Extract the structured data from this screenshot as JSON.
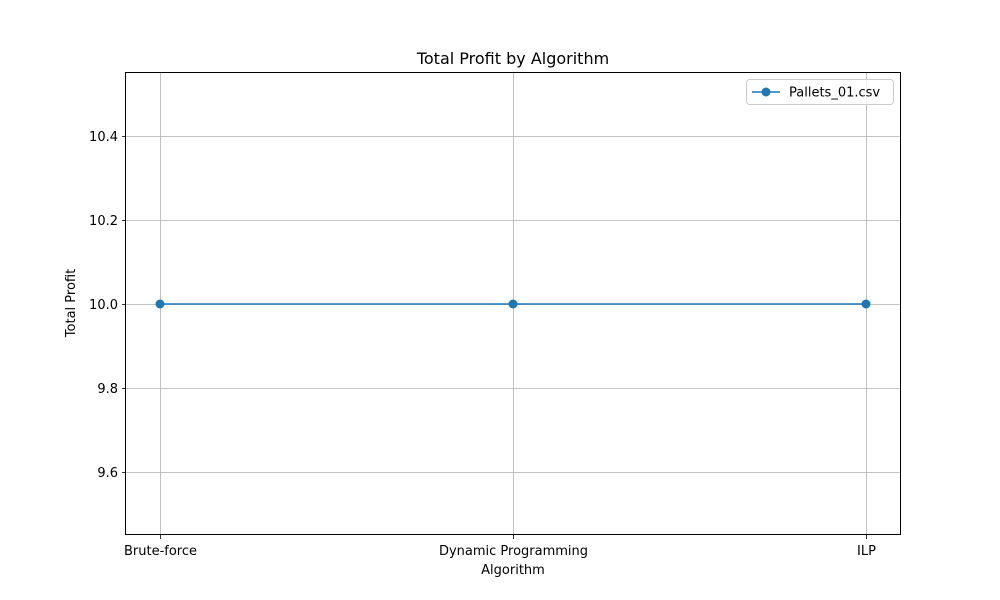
{
  "chart_data": {
    "type": "line",
    "title": "Total Profit by Algorithm",
    "xlabel": "Algorithm",
    "ylabel": "Total Profit",
    "categories": [
      "Brute-force",
      "Dynamic Programming",
      "ILP"
    ],
    "series": [
      {
        "name": "Pallets_01.csv",
        "values": [
          10.0,
          10.0,
          10.0
        ],
        "color": "#1f77b4",
        "marker": "circle"
      }
    ],
    "ylim": [
      9.45,
      10.55
    ],
    "yticks": [
      9.6,
      9.8,
      10.0,
      10.2,
      10.4
    ],
    "ytick_labels": [
      "9.6",
      "9.8",
      "10.0",
      "10.2",
      "10.4"
    ],
    "grid": true,
    "legend_position": "top-right"
  }
}
